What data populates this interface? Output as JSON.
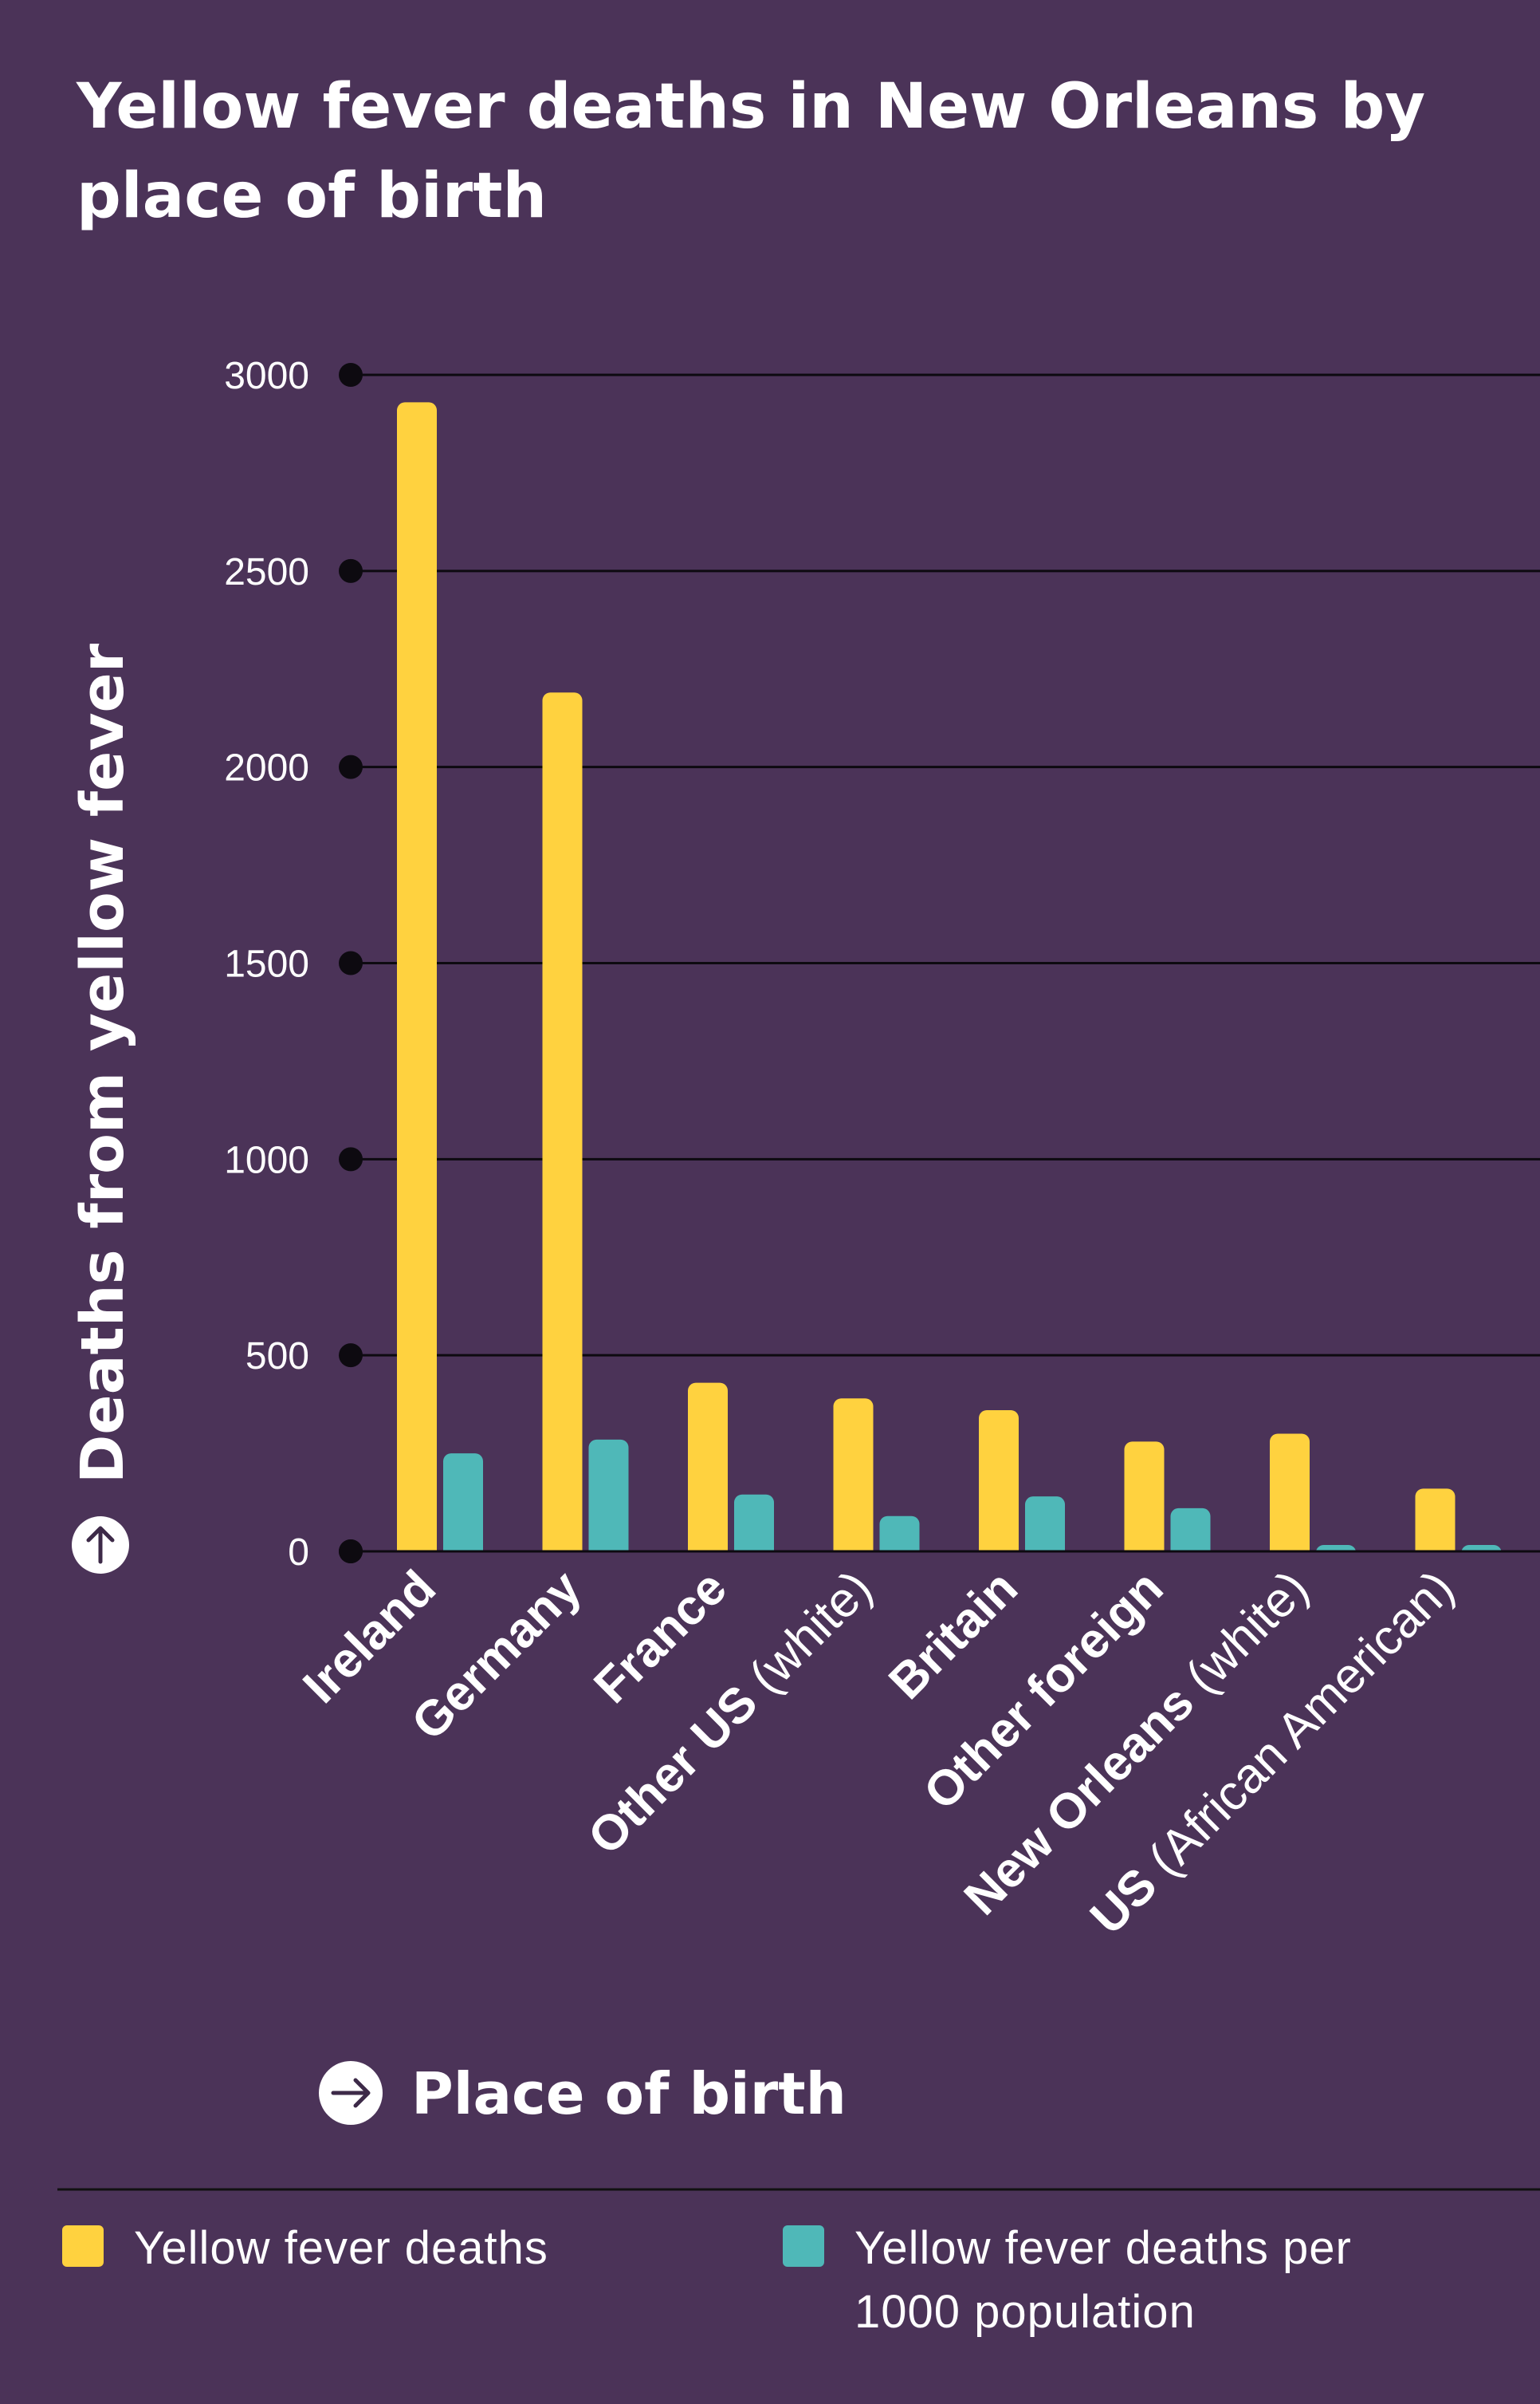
{
  "chart_data": {
    "type": "bar",
    "title_lines": [
      "Yellow fever deaths in New Orleans by",
      "place of birth"
    ],
    "ylabel": "Deaths from yellow fever",
    "xlabel": "Place of birth",
    "ylim": [
      0,
      3000
    ],
    "yticks": [
      0,
      500,
      1000,
      1500,
      2000,
      2500,
      3000
    ],
    "grid": true,
    "categories": [
      {
        "name": "Ireland",
        "qualifier": ""
      },
      {
        "name": "Germany",
        "qualifier": ""
      },
      {
        "name": "France",
        "qualifier": ""
      },
      {
        "name": "Other US",
        "qualifier": "(white)"
      },
      {
        "name": "Britain",
        "qualifier": ""
      },
      {
        "name": "Other foreign",
        "qualifier": ""
      },
      {
        "name": "New Orleans",
        "qualifier": "(white)"
      },
      {
        "name": "US",
        "qualifier": "(African American)"
      }
    ],
    "series": [
      {
        "name": "Yellow fever deaths",
        "color": "#ffd23f",
        "values": [
          2930,
          2190,
          430,
          390,
          360,
          280,
          300,
          160
        ]
      },
      {
        "name": "Yellow fever deaths per 1000 population",
        "color": "#4fb8b8",
        "values": [
          250,
          285,
          145,
          90,
          140,
          110,
          15,
          15
        ]
      }
    ],
    "legend": {
      "position": "bottom",
      "items": [
        {
          "lines": [
            "Yellow fever deaths"
          ],
          "color": "#ffd23f"
        },
        {
          "lines": [
            "Yellow fever deaths per",
            "1000 population"
          ],
          "color": "#4fb8b8"
        }
      ]
    }
  }
}
